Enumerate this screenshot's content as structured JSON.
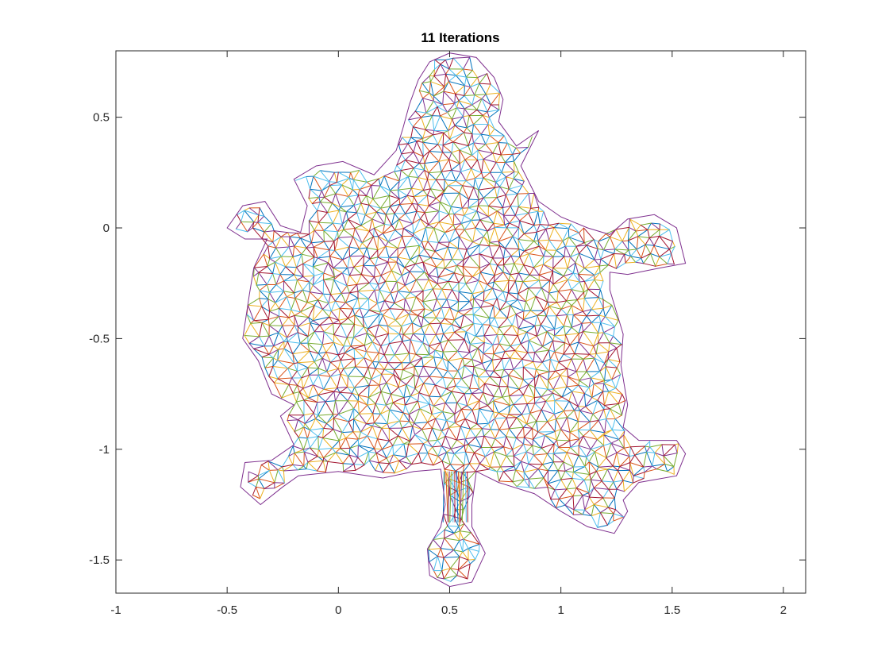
{
  "chart_data": {
    "type": "line",
    "title": "11 Iterations",
    "xlabel": "",
    "ylabel": "",
    "xlim": [
      -1,
      2.1
    ],
    "ylim": [
      -1.65,
      0.8
    ],
    "x_ticks": [
      "-1",
      "-0.5",
      "0",
      "0.5",
      "1",
      "1.5",
      "2"
    ],
    "x_tick_values": [
      -1,
      -0.5,
      0,
      0.5,
      1,
      1.5,
      2
    ],
    "y_ticks": [
      "0.5",
      "0",
      "-0.5",
      "-1",
      "-1.5"
    ],
    "y_tick_values": [
      0.5,
      0,
      -0.5,
      -1,
      -1.5
    ],
    "grid": false,
    "box": true,
    "series_colors": [
      "#0072bd",
      "#d95319",
      "#edb120",
      "#7e2f8e",
      "#77ac30",
      "#4dbeee",
      "#a2142f"
    ],
    "outline": [
      [
        0.5,
        0.79
      ],
      [
        0.62,
        0.77
      ],
      [
        0.7,
        0.68
      ],
      [
        0.74,
        0.58
      ],
      [
        0.72,
        0.48
      ],
      [
        0.8,
        0.37
      ],
      [
        0.9,
        0.44
      ],
      [
        0.82,
        0.28
      ],
      [
        0.9,
        0.12
      ],
      [
        1.0,
        0.05
      ],
      [
        1.12,
        0.0
      ],
      [
        1.22,
        -0.03
      ],
      [
        1.3,
        0.04
      ],
      [
        1.42,
        0.06
      ],
      [
        1.52,
        0.0
      ],
      [
        1.56,
        -0.16
      ],
      [
        1.45,
        -0.18
      ],
      [
        1.3,
        -0.21
      ],
      [
        1.22,
        -0.2
      ],
      [
        1.22,
        -0.28
      ],
      [
        1.28,
        -0.48
      ],
      [
        1.27,
        -0.62
      ],
      [
        1.3,
        -0.8
      ],
      [
        1.28,
        -0.9
      ],
      [
        1.35,
        -0.96
      ],
      [
        1.52,
        -0.96
      ],
      [
        1.56,
        -1.02
      ],
      [
        1.52,
        -1.12
      ],
      [
        1.35,
        -1.15
      ],
      [
        1.28,
        -1.23
      ],
      [
        1.3,
        -1.28
      ],
      [
        1.24,
        -1.38
      ],
      [
        1.12,
        -1.35
      ],
      [
        1.0,
        -1.28
      ],
      [
        0.88,
        -1.2
      ],
      [
        0.72,
        -1.15
      ],
      [
        0.62,
        -1.1
      ],
      [
        0.6,
        -1.25
      ],
      [
        0.6,
        -1.35
      ],
      [
        0.66,
        -1.47
      ],
      [
        0.6,
        -1.6
      ],
      [
        0.5,
        -1.62
      ],
      [
        0.41,
        -1.57
      ],
      [
        0.4,
        -1.45
      ],
      [
        0.46,
        -1.35
      ],
      [
        0.48,
        -1.25
      ],
      [
        0.46,
        -1.09
      ],
      [
        0.34,
        -1.1
      ],
      [
        0.2,
        -1.13
      ],
      [
        0.0,
        -1.1
      ],
      [
        -0.18,
        -1.12
      ],
      [
        -0.25,
        -1.17
      ],
      [
        -0.35,
        -1.25
      ],
      [
        -0.44,
        -1.17
      ],
      [
        -0.42,
        -1.06
      ],
      [
        -0.3,
        -1.05
      ],
      [
        -0.2,
        -0.98
      ],
      [
        -0.26,
        -0.85
      ],
      [
        -0.2,
        -0.8
      ],
      [
        -0.3,
        -0.75
      ],
      [
        -0.36,
        -0.6
      ],
      [
        -0.43,
        -0.5
      ],
      [
        -0.4,
        -0.3
      ],
      [
        -0.38,
        -0.18
      ],
      [
        -0.32,
        -0.05
      ],
      [
        -0.42,
        -0.05
      ],
      [
        -0.5,
        0.0
      ],
      [
        -0.43,
        0.1
      ],
      [
        -0.33,
        0.12
      ],
      [
        -0.26,
        0.01
      ],
      [
        -0.17,
        -0.02
      ],
      [
        -0.14,
        0.1
      ],
      [
        -0.2,
        0.22
      ],
      [
        -0.1,
        0.28
      ],
      [
        0.02,
        0.3
      ],
      [
        0.16,
        0.24
      ],
      [
        0.26,
        0.35
      ],
      [
        0.29,
        0.45
      ],
      [
        0.32,
        0.56
      ],
      [
        0.36,
        0.67
      ],
      [
        0.41,
        0.75
      ],
      [
        0.5,
        0.79
      ]
    ],
    "annotations": []
  }
}
